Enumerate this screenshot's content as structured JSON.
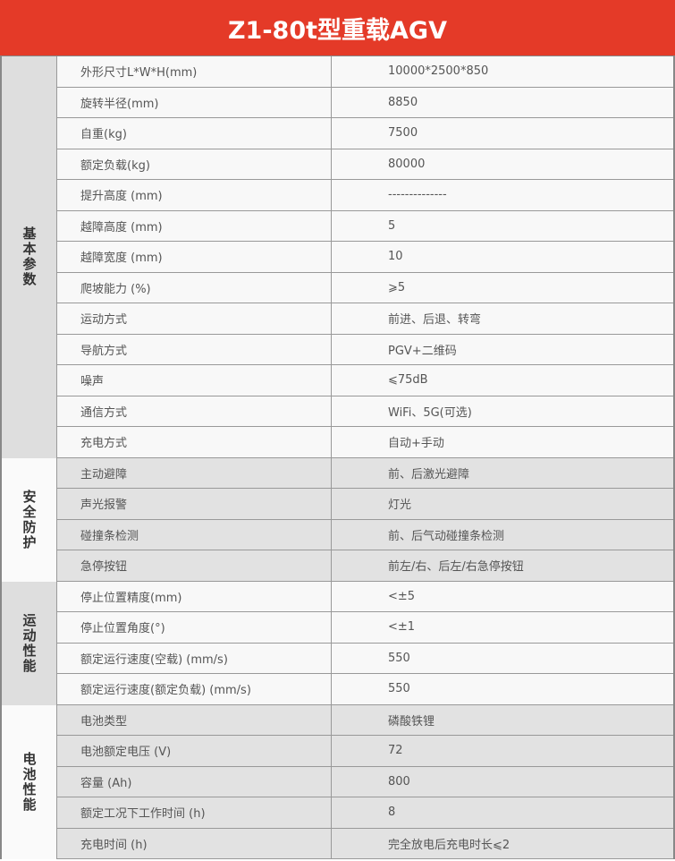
{
  "title": "Z1-80t型重载AGV",
  "groups": [
    {
      "label": "基本参数",
      "rows": [
        [
          "外形尺寸L*W*H(mm)",
          "10000*2500*850"
        ],
        [
          "旋转半径(mm)",
          "8850"
        ],
        [
          "自重(kg)",
          "7500"
        ],
        [
          "额定负载(kg)",
          "80000"
        ],
        [
          "提升高度 (mm)",
          "--------------"
        ],
        [
          "越障高度 (mm)",
          "5"
        ],
        [
          "越障宽度 (mm)",
          "10"
        ],
        [
          "爬坡能力 (%)",
          "⩾5"
        ],
        [
          "运动方式",
          "前进、后退、转弯"
        ],
        [
          "导航方式",
          "PGV+二维码"
        ],
        [
          "噪声",
          "⩽75dB"
        ],
        [
          "通信方式",
          "WiFi、5G(可选)"
        ],
        [
          "充电方式",
          "自动+手动"
        ]
      ]
    },
    {
      "label": "安全防护",
      "rows": [
        [
          "主动避障",
          "前、后激光避障"
        ],
        [
          "声光报警",
          "灯光"
        ],
        [
          "碰撞条检测",
          "前、后气动碰撞条检测"
        ],
        [
          "急停按钮",
          "前左/右、后左/右急停按钮"
        ]
      ]
    },
    {
      "label": "运动性能",
      "rows": [
        [
          "停止位置精度(mm)",
          "<±5"
        ],
        [
          "停止位置角度(°)",
          "<±1"
        ],
        [
          "额定运行速度(空载) (mm/s)",
          "550"
        ],
        [
          "额定运行速度(额定负载) (mm/s)",
          "550"
        ]
      ]
    },
    {
      "label": "电池性能",
      "rows": [
        [
          "电池类型",
          "磷酸铁锂"
        ],
        [
          "电池额定电压 (V)",
          "72"
        ],
        [
          "容量 (Ah)",
          "800"
        ],
        [
          "额定工况下工作时间 (h)",
          "8"
        ],
        [
          "充电时间 (h)",
          "完全放电后充电时长⩽2"
        ]
      ]
    }
  ]
}
